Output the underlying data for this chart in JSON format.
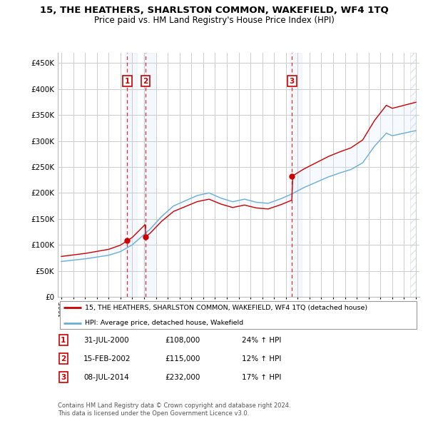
{
  "title": "15, THE HEATHERS, SHARLSTON COMMON, WAKEFIELD, WF4 1TQ",
  "subtitle": "Price paid vs. HM Land Registry's House Price Index (HPI)",
  "legend_label_red": "15, THE HEATHERS, SHARLSTON COMMON, WAKEFIELD, WF4 1TQ (detached house)",
  "legend_label_blue": "HPI: Average price, detached house, Wakefield",
  "footer1": "Contains HM Land Registry data © Crown copyright and database right 2024.",
  "footer2": "This data is licensed under the Open Government Licence v3.0.",
  "transactions": [
    {
      "num": 1,
      "date": "31-JUL-2000",
      "price": "£108,000",
      "hpi": "24% ↑ HPI"
    },
    {
      "num": 2,
      "date": "15-FEB-2002",
      "price": "£115,000",
      "hpi": "12% ↑ HPI"
    },
    {
      "num": 3,
      "date": "08-JUL-2014",
      "price": "£232,000",
      "hpi": "17% ↑ HPI"
    }
  ],
  "sale_dates_decimal": [
    2000.58,
    2002.12,
    2014.52
  ],
  "sale_prices": [
    108000,
    115000,
    232000
  ],
  "ylim": [
    0,
    470000
  ],
  "yticks": [
    0,
    50000,
    100000,
    150000,
    200000,
    250000,
    300000,
    350000,
    400000,
    450000
  ],
  "xlim_start": 1994.7,
  "xlim_end": 2025.3,
  "background_color": "#ffffff",
  "plot_bg_color": "#ffffff",
  "grid_color": "#cccccc",
  "red_color": "#cc0000",
  "blue_color": "#6aaed6",
  "fill_color": "#ddeeff",
  "hatch_color": "#bbccdd"
}
